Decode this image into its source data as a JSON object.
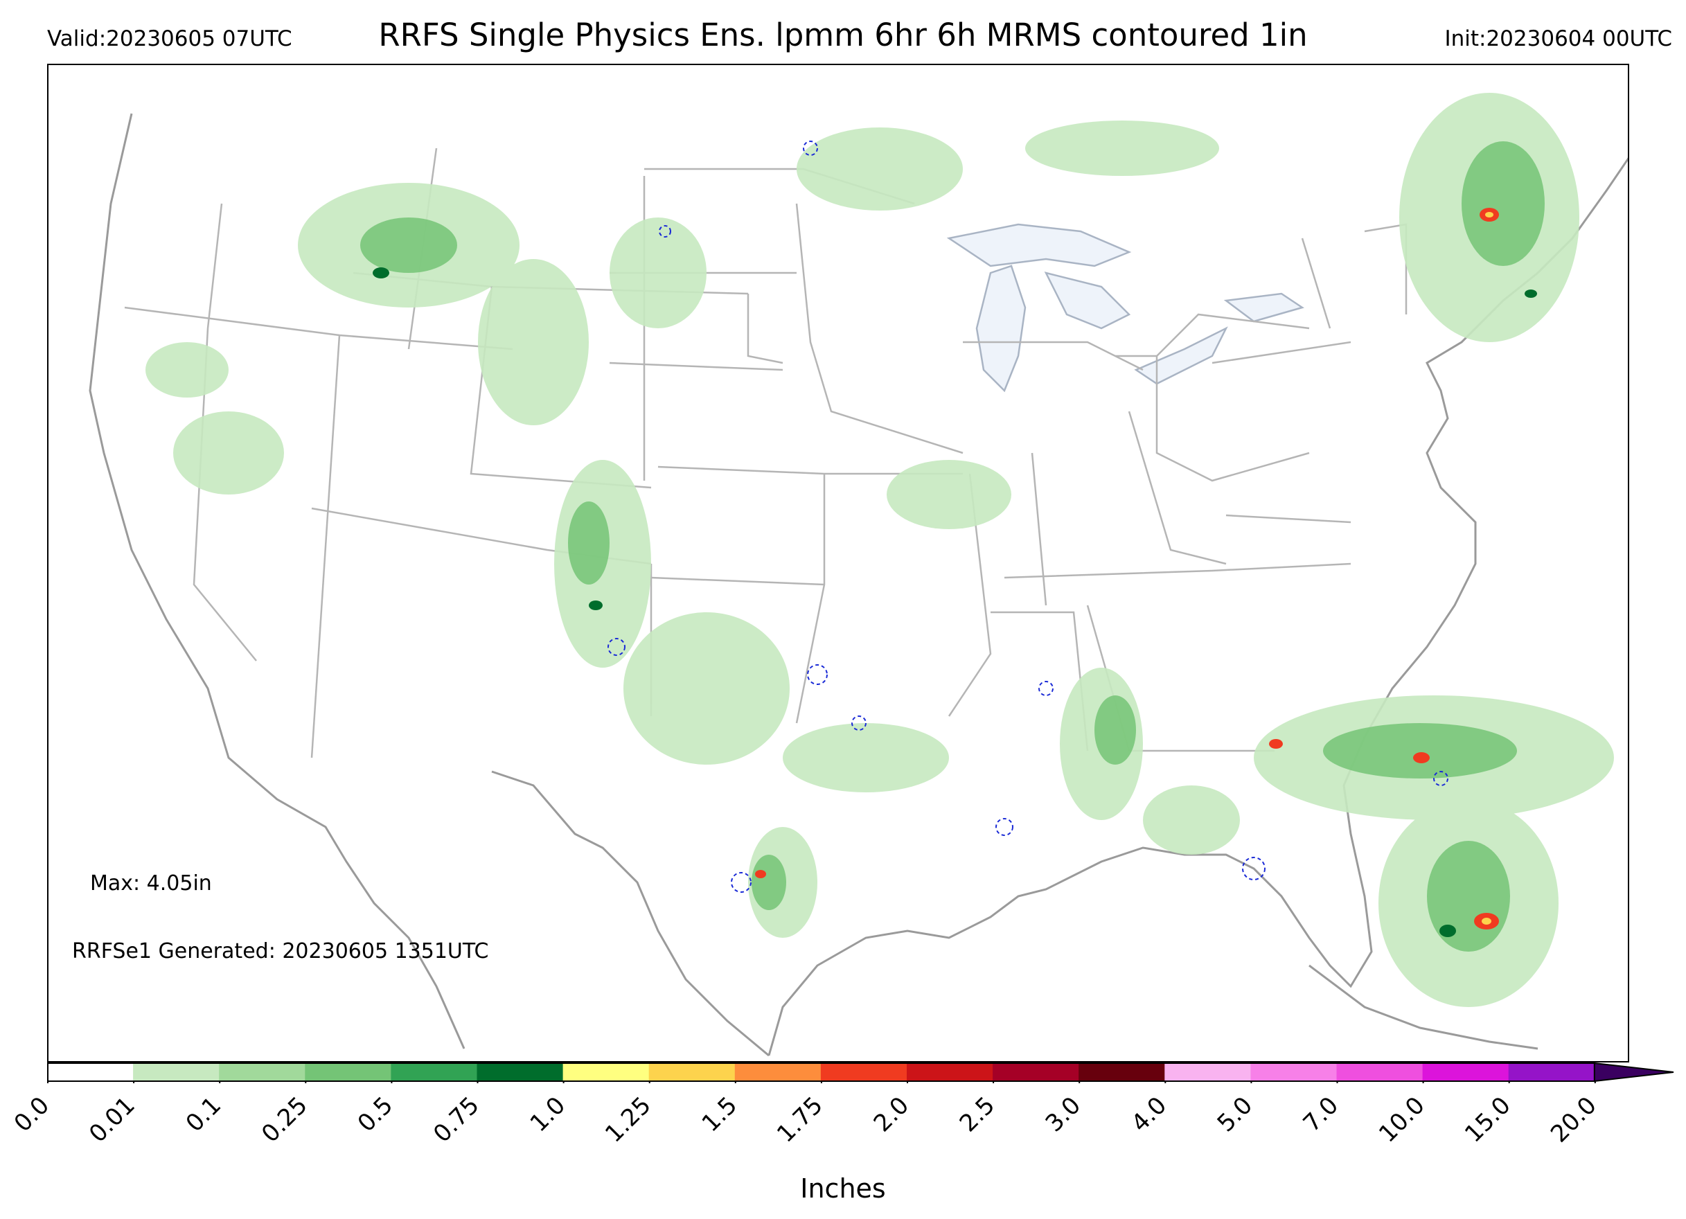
{
  "header": {
    "valid": "Valid:20230605 07UTC",
    "title": "RRFS Single Physics Ens. lpmm 6hr 6h MRMS contoured 1in",
    "init": "Init:20230604 00UTC"
  },
  "annotations": {
    "max": "Max: 4.05in",
    "generated": "RRFSe1 Generated: 20230605 1351UTC"
  },
  "colorbar": {
    "label": "Inches",
    "ticks": [
      "0.0",
      "0.01",
      "0.1",
      "0.25",
      "0.5",
      "0.75",
      "1.0",
      "1.25",
      "1.5",
      "1.75",
      "2.0",
      "2.5",
      "3.0",
      "4.0",
      "5.0",
      "7.0",
      "10.0",
      "15.0",
      "20.0"
    ],
    "colors": [
      "#ffffff",
      "#c7e9c0",
      "#a1d99b",
      "#74c476",
      "#31a354",
      "#006d2c",
      "#ffff80",
      "#fdd34d",
      "#fd8d3c",
      "#f03b20",
      "#cc1418",
      "#a50026",
      "#67000d",
      "#f9b3f0",
      "#f780e8",
      "#ef4fdf",
      "#dc14db",
      "#9514c8"
    ],
    "extend_color": "#3a0060"
  },
  "map": {
    "region": "CONUS",
    "state_line_color": "#b5b5b5",
    "coast_color": "#9a9a9a",
    "lake_fill": "#eef3fa",
    "mrms_contour_color": "#1a2ad6"
  }
}
